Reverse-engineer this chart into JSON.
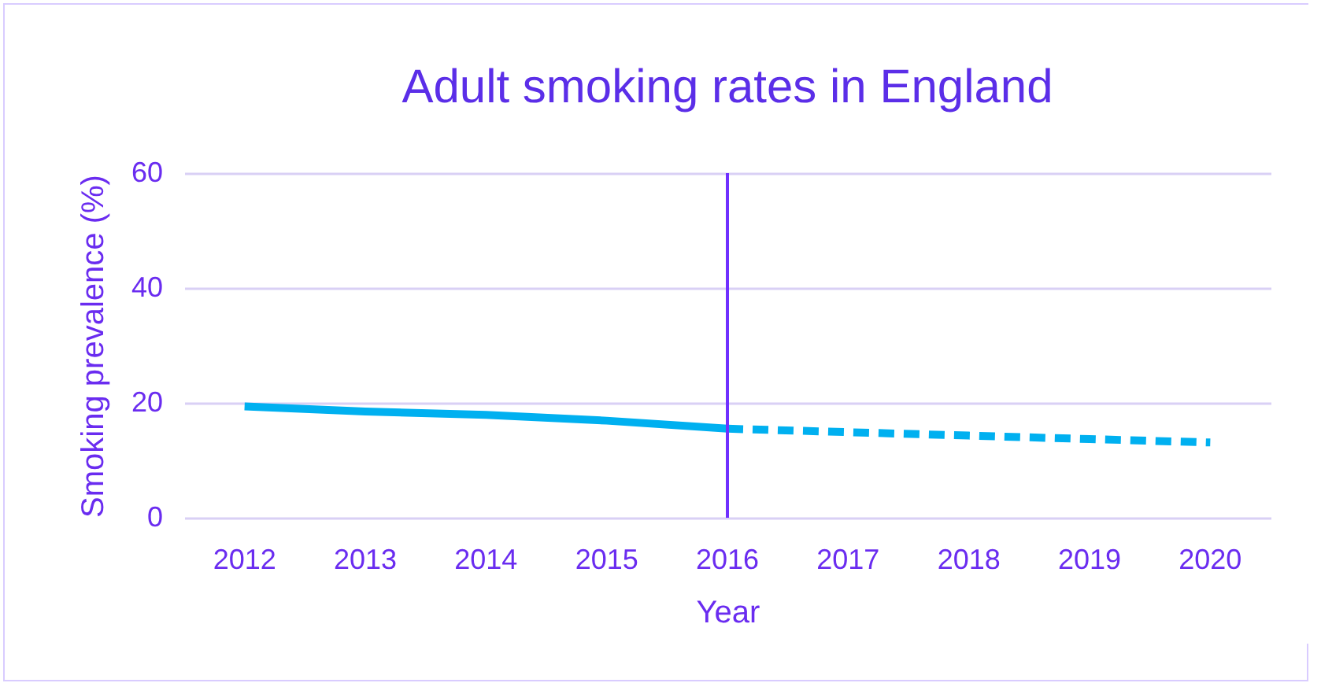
{
  "chart_data": {
    "type": "line",
    "title": "Adult smoking rates in England",
    "xlabel": "Year",
    "ylabel": "Smoking prevalence (%)",
    "categories": [
      "2012",
      "2013",
      "2014",
      "2015",
      "2016",
      "2017",
      "2018",
      "2019",
      "2020"
    ],
    "series": [
      {
        "color": "#00b0f0",
        "line_style": "solid",
        "values": [
          19.4,
          18.5,
          17.9,
          16.9,
          15.5,
          null,
          null,
          null,
          null
        ]
      },
      {
        "color": "#00b0f0",
        "line_style": "dashed",
        "values": [
          null,
          null,
          null,
          null,
          15.5,
          14.9,
          14.3,
          13.7,
          13.1
        ]
      }
    ],
    "ylim": [
      0,
      60
    ],
    "yticks": [
      0,
      20,
      40,
      60
    ],
    "grid": "y",
    "ref_lines": [
      {
        "axis": "x",
        "value": "2016",
        "color": "#7030ff"
      }
    ]
  }
}
